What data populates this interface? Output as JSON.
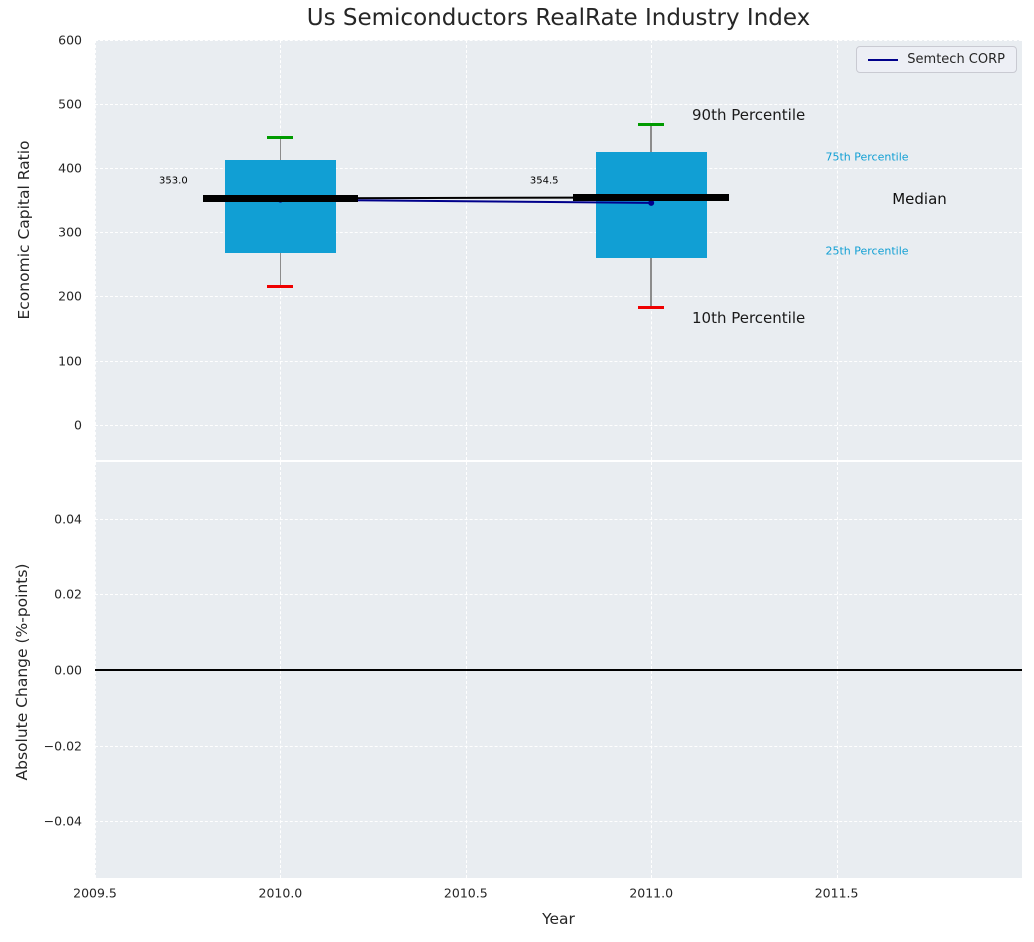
{
  "colors": {
    "figure_bg": "#ffffff",
    "plot_bg": "#e9edf1",
    "grid_line": "#ffffff",
    "text": "#262626",
    "box_fill": "#119fd4",
    "whisker": "#8c8c8c",
    "cap_top": "#009b00",
    "cap_bottom": "#ef0000",
    "median_line": "#000000",
    "series_line": "#00008b",
    "zero_line": "#000000",
    "legend_bg": "#edeff5",
    "legend_border": "#c9cad2"
  },
  "chart_data": [
    {
      "type": "box",
      "title": "Us Semiconductors RealRate Industry Index",
      "ylabel": "Economic Capital Ratio",
      "xlabel": "",
      "xlim": [
        2009.5,
        2012.0
      ],
      "ylim": [
        -55,
        600
      ],
      "yticks": [
        0,
        100,
        200,
        300,
        400,
        500,
        600
      ],
      "ytick_labels": [
        "0",
        "100",
        "200",
        "300",
        "400",
        "500",
        "600"
      ],
      "xticks": [
        2009.5,
        2010.0,
        2010.5,
        2011.0,
        2011.5
      ],
      "xtick_labels": [
        "2009.5",
        "2010.0",
        "2010.5",
        "2011.0",
        "2011.5"
      ],
      "grid": true,
      "legend_position": "upper right",
      "legend": [
        {
          "name": "Semtech CORP",
          "color": "#00008b"
        }
      ],
      "boxes": [
        {
          "year": 2010,
          "p10": 215,
          "p25": 268,
          "median": 353.0,
          "p75": 413,
          "p90": 448,
          "median_label": "353.0",
          "label_y": 380
        },
        {
          "year": 2011,
          "p10": 183,
          "p25": 260,
          "median": 354.5,
          "p75": 425,
          "p90": 468,
          "median_label": "354.5",
          "label_y": 380
        }
      ],
      "series": [
        {
          "name": "Semtech CORP",
          "color": "#00008b",
          "x": [
            2010,
            2011
          ],
          "values": [
            351,
            346
          ]
        }
      ],
      "annotations": [
        {
          "text": "90th Percentile",
          "x": 2011.11,
          "y": 483,
          "size": 15,
          "color": "#1a1a1a"
        },
        {
          "text": "10th Percentile",
          "x": 2011.11,
          "y": 167,
          "size": 15,
          "color": "#1a1a1a"
        },
        {
          "text": "75th Percentile",
          "x": 2011.47,
          "y": 417,
          "size": 11,
          "color": "#119fd4"
        },
        {
          "text": "Median",
          "x": 2011.65,
          "y": 352,
          "size": 15,
          "color": "#111111"
        },
        {
          "text": "25th Percentile",
          "x": 2011.47,
          "y": 271,
          "size": 11,
          "color": "#119fd4"
        }
      ]
    },
    {
      "type": "line",
      "title": "",
      "ylabel": "Absolute Change (%-points)",
      "xlabel": "Year",
      "xlim": [
        2009.5,
        2012.0
      ],
      "ylim": [
        -0.055,
        0.055
      ],
      "yticks": [
        -0.04,
        -0.02,
        0.0,
        0.02,
        0.04
      ],
      "ytick_labels": [
        "−0.04",
        "−0.02",
        "0.00",
        "0.02",
        "0.04"
      ],
      "grid": true,
      "zero_line": 0.0,
      "series": []
    }
  ]
}
